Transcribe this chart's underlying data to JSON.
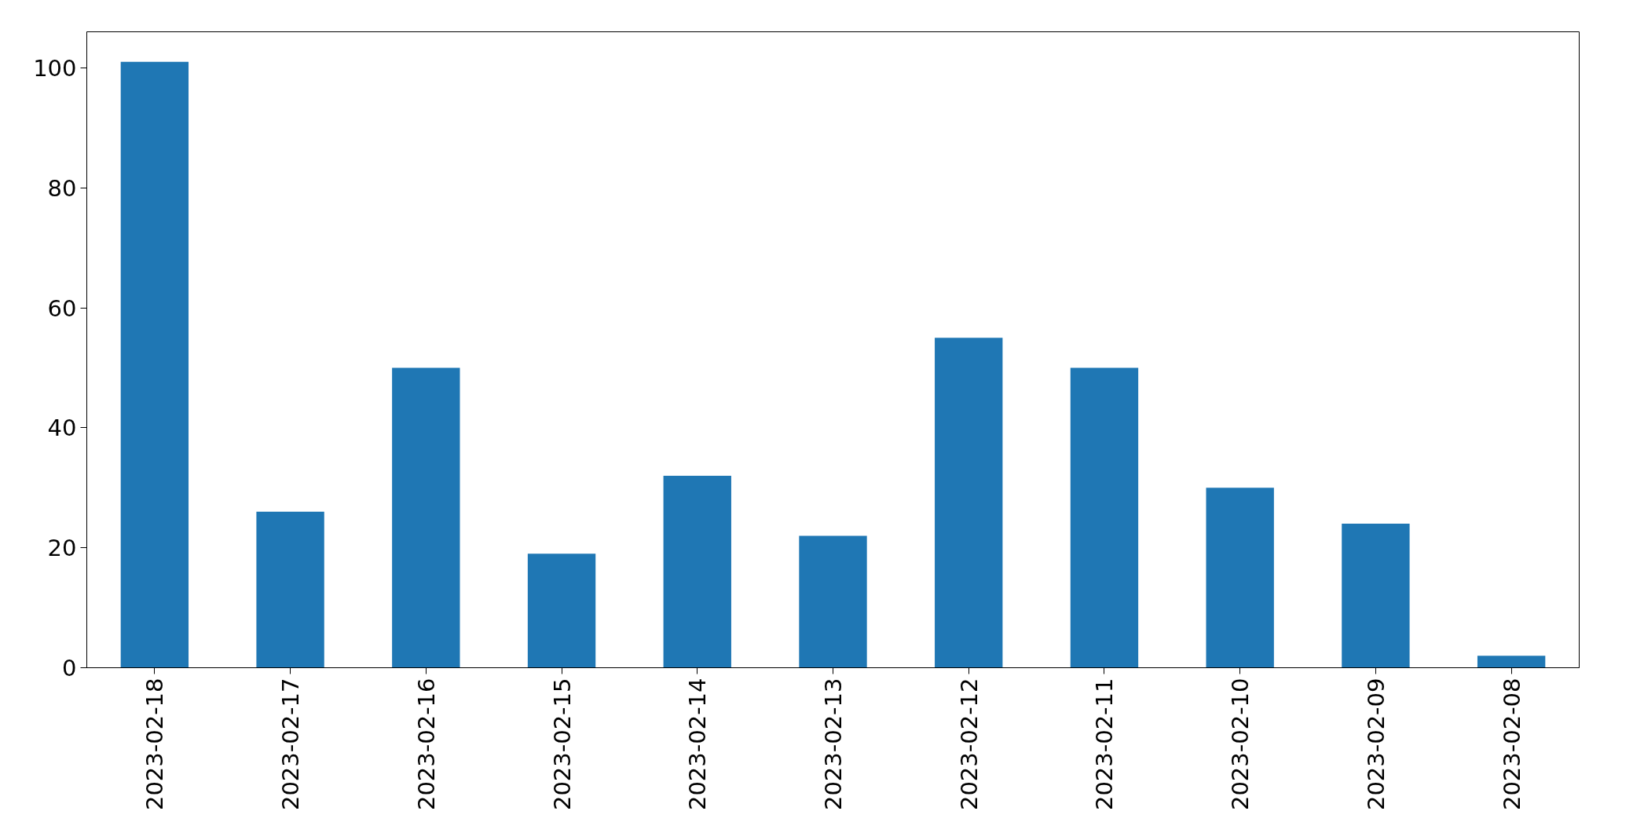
{
  "chart_data": {
    "type": "bar",
    "categories": [
      "2023-02-18",
      "2023-02-17",
      "2023-02-16",
      "2023-02-15",
      "2023-02-14",
      "2023-02-13",
      "2023-02-12",
      "2023-02-11",
      "2023-02-10",
      "2023-02-09",
      "2023-02-08"
    ],
    "values": [
      101,
      26,
      50,
      19,
      32,
      22,
      55,
      50,
      30,
      24,
      2
    ],
    "color": "#1f77b4",
    "ylim": [
      0,
      106
    ],
    "yticks": [
      0,
      20,
      40,
      60,
      80,
      100
    ],
    "grid": false
  }
}
